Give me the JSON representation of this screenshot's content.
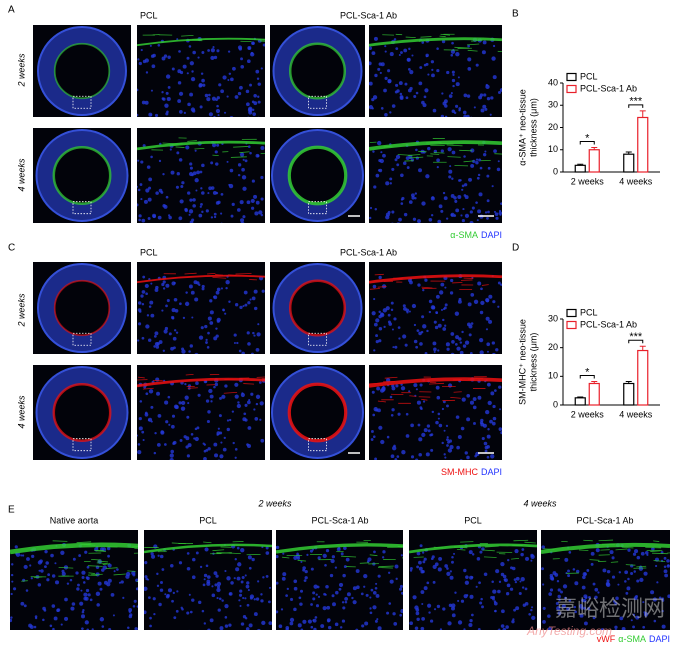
{
  "panel_labels": [
    "A",
    "B",
    "C",
    "D",
    "E"
  ],
  "panel_a": {
    "columns": [
      "PCL",
      "PCL-Sca-1 Ab"
    ],
    "rows": [
      "2 weeks",
      "4 weeks"
    ],
    "stain_legend": [
      {
        "text": "α-SMA",
        "color": "#33cc33"
      },
      {
        "text": "DAPI",
        "color": "#2233ff"
      }
    ]
  },
  "panel_c": {
    "columns": [
      "PCL",
      "PCL-Sca-1 Ab"
    ],
    "rows": [
      "2 weeks",
      "4 weeks"
    ],
    "stain_legend": [
      {
        "text": "SM-MHC",
        "color": "#ee1111"
      },
      {
        "text": "DAPI",
        "color": "#2233ff"
      }
    ]
  },
  "panel_e": {
    "groups": [
      "2 weeks",
      "4 weeks"
    ],
    "columns": [
      "Native aorta",
      "PCL",
      "PCL-Sca-1 Ab",
      "PCL",
      "PCL-Sca-1 Ab"
    ],
    "stain_legend": [
      {
        "text": "vWF",
        "color": "#ee1111"
      },
      {
        "text": "α-SMA",
        "color": "#33cc33"
      },
      {
        "text": "DAPI",
        "color": "#2233ff"
      }
    ]
  },
  "watermark": [
    "嘉峪检测网",
    "AnyTesting.com"
  ],
  "chart_data": [
    {
      "type": "bar",
      "ylabel": [
        "α-SMA⁺ neo-tissue",
        "thickness (μm)"
      ],
      "categories": [
        "2 weeks",
        "4 weeks"
      ],
      "series": [
        {
          "name": "PCL",
          "color": "#000000",
          "values": [
            3,
            8
          ],
          "errors": [
            0.5,
            1
          ]
        },
        {
          "name": "PCL-Sca-1 Ab",
          "color": "#e8202a",
          "values": [
            10,
            24.5
          ],
          "errors": [
            1,
            3
          ]
        }
      ],
      "significance": [
        "*",
        "***"
      ],
      "ylim": [
        0,
        40
      ],
      "yticks": [
        0,
        10,
        20,
        30,
        40
      ]
    },
    {
      "type": "bar",
      "ylabel": [
        "SM-MHC⁺ neo-tissue",
        "thickness (μm)"
      ],
      "categories": [
        "2 weeks",
        "4 weeks"
      ],
      "series": [
        {
          "name": "PCL",
          "color": "#000000",
          "values": [
            2.5,
            7.5
          ],
          "errors": [
            0.3,
            0.7
          ]
        },
        {
          "name": "PCL-Sca-1 Ab",
          "color": "#e8202a",
          "values": [
            7.5,
            19
          ],
          "errors": [
            0.7,
            1.5
          ]
        }
      ],
      "significance": [
        "*",
        "***"
      ],
      "ylim": [
        0,
        30
      ],
      "yticks": [
        0,
        10,
        20,
        30
      ]
    }
  ]
}
